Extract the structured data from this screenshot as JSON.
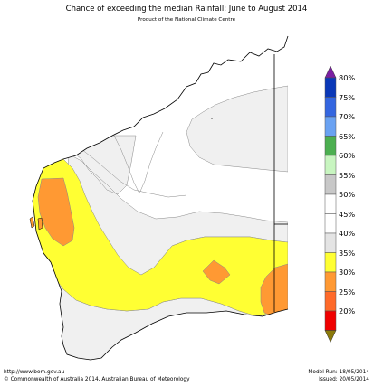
{
  "header": {
    "title": "Chance of exceeding the median Rainfall: June to August 2014",
    "subtitle": "Product of the National Climate Centre"
  },
  "legend": [
    {
      "label": "80%",
      "color": "#0a38b8"
    },
    {
      "label": "75%",
      "color": "#3466e0"
    },
    {
      "label": "70%",
      "color": "#6aa2f2"
    },
    {
      "label": "65%",
      "color": "#4caf50"
    },
    {
      "label": "60%",
      "color": "#c8f5c0"
    },
    {
      "label": "55%",
      "color": "#c8c8c8"
    },
    {
      "label": "50%",
      "color": "#ffffff"
    },
    {
      "label": "45%",
      "color": "#ffffff"
    },
    {
      "label": "40%",
      "color": "#e4e4e4"
    },
    {
      "label": "35%",
      "color": "#ffff33"
    },
    {
      "label": "30%",
      "color": "#ff9933"
    },
    {
      "label": "25%",
      "color": "#ff6a2a"
    },
    {
      "label": "20%",
      "color": "#f00000"
    }
  ],
  "legend_top_arrow_color": "#7b1fa2",
  "legend_bottom_arrow_color": "#8b7a0a",
  "map_colors": {
    "land": "#ffffff",
    "coast": "#000000",
    "band_40_45": "#f0f0f0",
    "band_35_40": "#ffff33",
    "band_30_35": "#ff9933"
  },
  "footer": {
    "url": "http://www.bom.gov.au",
    "copyright": "©  Commonwealth of Australia 2014, Australian Bureau of Meteorology",
    "model_run": "Model Run: 18/05/2014",
    "issued": "Issued: 20/05/2014"
  }
}
